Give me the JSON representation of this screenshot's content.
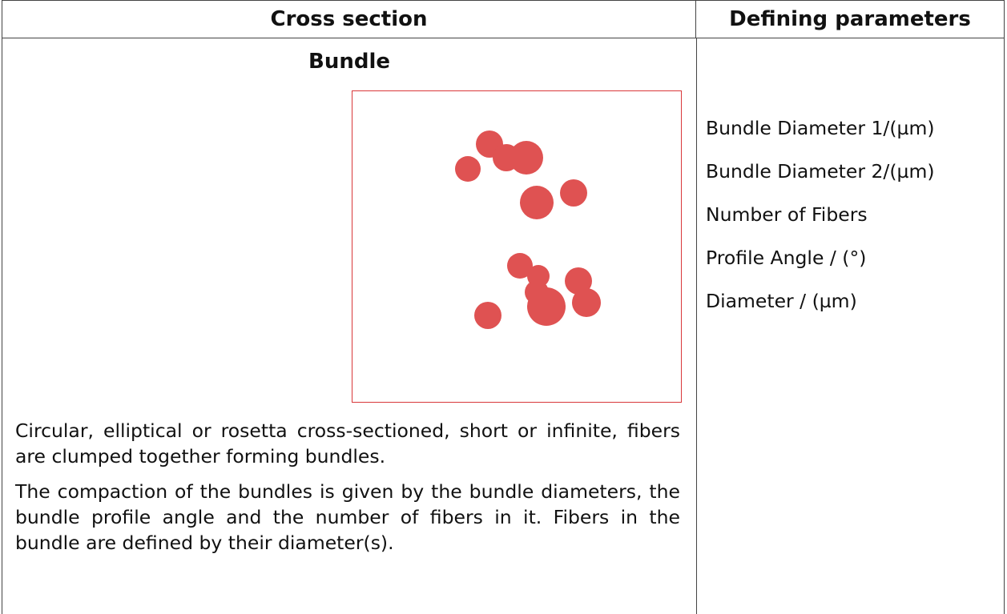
{
  "table": {
    "headers": [
      "Cross section",
      "Defining parameters"
    ],
    "rows": [
      {
        "title": "Bundle",
        "paragraphs": [
          "Circular, elliptical or rosetta cross-sectioned, short or infinite, fibers are clumped together forming bundles.",
          "The compaction of the bundles is given by the bundle diameters, the bundle profile angle and the number of fibers in it. Fibers in the bundle are defined by their diameter(s)."
        ],
        "parameters": [
          "Bundle Diameter 1/(µm)",
          "Bundle Diameter 2/(µm)",
          "Number of Fibers",
          "Profile Angle / (°)",
          "Diameter / (µm)"
        ]
      }
    ]
  }
}
